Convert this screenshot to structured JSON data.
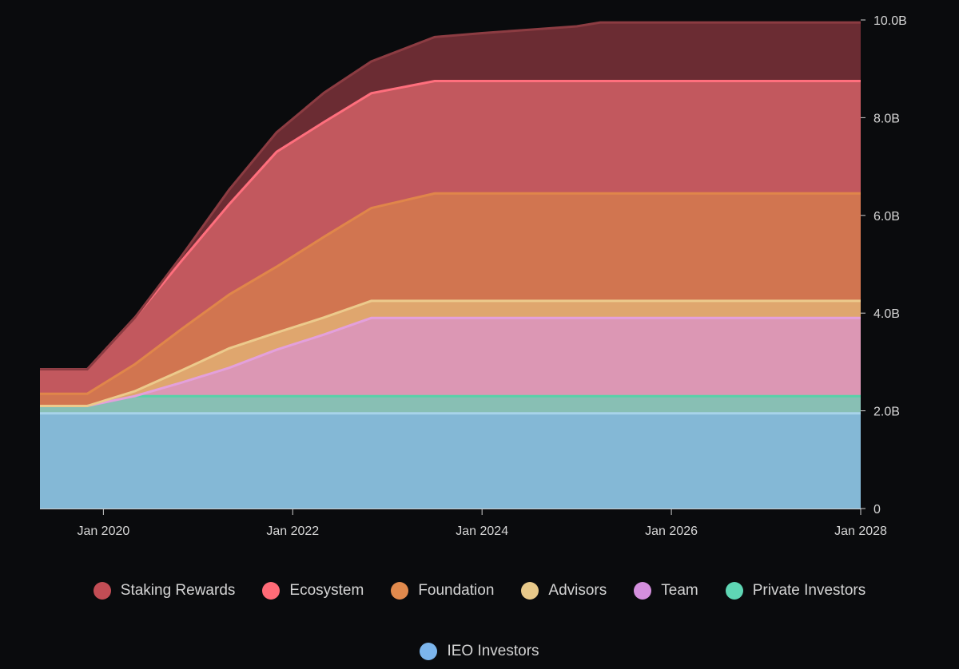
{
  "chart_data": {
    "type": "area",
    "stacked": true,
    "x_start": 2019.33,
    "x_end": 2028.0,
    "xlim": [
      2019.33,
      2028.0
    ],
    "ylim": [
      0,
      10
    ],
    "y_unit": "B",
    "x_ticks": [
      {
        "value": 2020,
        "label": "Jan 2020"
      },
      {
        "value": 2022,
        "label": "Jan 2022"
      },
      {
        "value": 2024,
        "label": "Jan 2024"
      },
      {
        "value": 2026,
        "label": "Jan 2026"
      },
      {
        "value": 2028,
        "label": "Jan 2028"
      }
    ],
    "y_ticks": [
      {
        "value": 0,
        "label": "0"
      },
      {
        "value": 2,
        "label": "2.0B"
      },
      {
        "value": 4,
        "label": "4.0B"
      },
      {
        "value": 6,
        "label": "6.0B"
      },
      {
        "value": 8,
        "label": "8.0B"
      },
      {
        "value": 10,
        "label": "10.0B"
      }
    ],
    "legend_position": "bottom",
    "series": [
      {
        "name": "IEO Investors",
        "legend_color": "#7cb5ec",
        "fill": "#84b8d6",
        "line": "#a8d4ea",
        "points": [
          [
            2019.33,
            1.95
          ],
          [
            2028.0,
            1.95
          ]
        ]
      },
      {
        "name": "Private Investors",
        "legend_color": "#5fd6b4",
        "fill": "#88bfb4",
        "line": "#58d1a8",
        "points": [
          [
            2019.33,
            0.15
          ],
          [
            2019.83,
            0.15
          ],
          [
            2019.83,
            0.35
          ],
          [
            2028.0,
            0.35
          ]
        ]
      },
      {
        "name": "Team",
        "legend_color": "#d48fdd",
        "fill": "#dc97b4",
        "line": "#e3a0dc",
        "points": [
          [
            2019.33,
            0
          ],
          [
            2020.33,
            0
          ],
          [
            2020.33,
            0.28
          ],
          [
            2020.83,
            0.28
          ],
          [
            2020.83,
            0.58
          ],
          [
            2021.33,
            0.58
          ],
          [
            2021.33,
            0.95
          ],
          [
            2021.83,
            0.95
          ],
          [
            2021.83,
            1.26
          ],
          [
            2022.33,
            1.26
          ],
          [
            2022.33,
            1.6
          ],
          [
            2028.0,
            1.6
          ]
        ]
      },
      {
        "name": "Advisors",
        "legend_color": "#e8c98a",
        "fill": "#dfa66e",
        "line": "#ecca8c",
        "points": [
          [
            2019.33,
            0
          ],
          [
            2019.83,
            0
          ],
          [
            2019.83,
            0.1
          ],
          [
            2020.33,
            0.1
          ],
          [
            2020.33,
            0.25
          ],
          [
            2020.83,
            0.25
          ],
          [
            2020.83,
            0.4
          ],
          [
            2021.33,
            0.4
          ],
          [
            2021.33,
            0.35
          ],
          [
            2022.33,
            0.35
          ],
          [
            2028.0,
            0.35
          ]
        ]
      },
      {
        "name": "Foundation",
        "legend_color": "#e18a4d",
        "fill": "#d17550",
        "line": "#e0864a",
        "points": [
          [
            2019.33,
            0.25
          ],
          [
            2019.83,
            0.25
          ],
          [
            2019.83,
            0.55
          ],
          [
            2020.33,
            0.55
          ],
          [
            2020.33,
            0.85
          ],
          [
            2020.83,
            0.85
          ],
          [
            2020.83,
            1.1
          ],
          [
            2021.33,
            1.1
          ],
          [
            2021.33,
            1.35
          ],
          [
            2021.83,
            1.35
          ],
          [
            2021.83,
            1.65
          ],
          [
            2022.33,
            1.65
          ],
          [
            2022.33,
            1.9
          ],
          [
            2022.83,
            1.9
          ],
          [
            2022.83,
            2.2
          ],
          [
            2028.0,
            2.2
          ]
        ]
      },
      {
        "name": "Ecosystem",
        "legend_color": "#ff6b77",
        "fill": "#c2585e",
        "line": "#ff6f7d",
        "points": [
          [
            2019.33,
            0.5
          ],
          [
            2019.83,
            0.5
          ],
          [
            2019.83,
            0.95
          ],
          [
            2020.33,
            0.95
          ],
          [
            2020.33,
            1.4
          ],
          [
            2020.83,
            1.4
          ],
          [
            2020.83,
            1.85
          ],
          [
            2021.33,
            1.85
          ],
          [
            2021.33,
            2.35
          ],
          [
            2021.83,
            2.35
          ],
          [
            2021.83,
            2.35
          ],
          [
            2022.33,
            2.35
          ],
          [
            2022.33,
            2.35
          ],
          [
            2022.83,
            2.35
          ],
          [
            2022.83,
            2.3
          ],
          [
            2028.0,
            2.3
          ]
        ]
      },
      {
        "name": "Staking Rewards",
        "legend_color": "#c24d55",
        "fill": "#6b2c33",
        "line": "#8c3c42",
        "points": [
          [
            2019.33,
            0
          ],
          [
            2020.33,
            0
          ],
          [
            2020.33,
            0.02
          ],
          [
            2020.83,
            0.1
          ],
          [
            2020.83,
            0.14
          ],
          [
            2021.33,
            0.3
          ],
          [
            2021.33,
            0.31
          ],
          [
            2021.83,
            0.4
          ],
          [
            2021.83,
            0.45
          ],
          [
            2022.33,
            0.6
          ],
          [
            2022.33,
            0.55
          ],
          [
            2022.83,
            0.65
          ],
          [
            2022.83,
            0.7
          ],
          [
            2023.5,
            0.9
          ],
          [
            2024.0,
            0.98
          ],
          [
            2024.5,
            1.05
          ],
          [
            2025.0,
            1.12
          ],
          [
            2025.25,
            1.2
          ],
          [
            2026.0,
            1.2
          ],
          [
            2028.0,
            1.2
          ]
        ]
      }
    ],
    "legend_order": [
      "Staking Rewards",
      "Ecosystem",
      "Foundation",
      "Advisors",
      "Team",
      "Private Investors",
      "IEO Investors"
    ]
  }
}
